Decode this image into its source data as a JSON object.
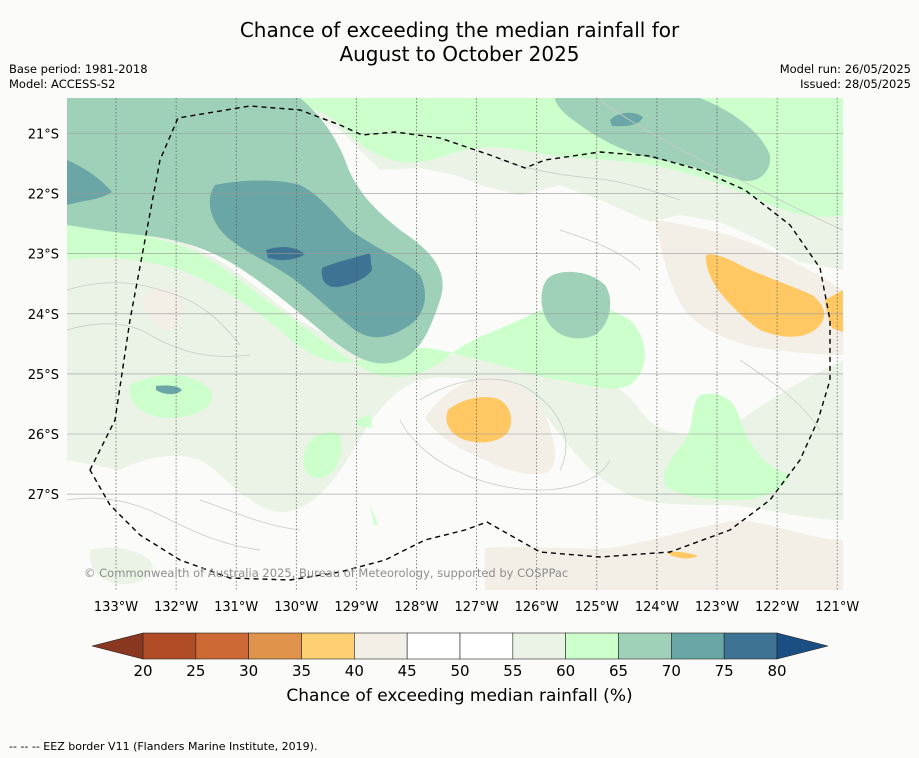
{
  "title_line1": "Chance of exceeding the median rainfall for",
  "title_line2": "August to October 2025",
  "base_period": "Base period: 1981-2018",
  "model": "Model: ACCESS-S2",
  "model_run": "Model run: 26/05/2025",
  "issued": "Issued: 28/05/2025",
  "lat_labels": [
    "21°S",
    "22°S",
    "23°S",
    "24°S",
    "25°S",
    "26°S",
    "27°S"
  ],
  "lon_labels": [
    "133°W",
    "132°W",
    "131°W",
    "130°W",
    "129°W",
    "128°W",
    "127°W",
    "126°W",
    "125°W",
    "124°W",
    "123°W",
    "122°W",
    "121°W"
  ],
  "copyright": "© Commonwealth of Australia 2025, Bureau of Meteorology, supported by COSPPac",
  "colorbar": {
    "ticks": [
      "20",
      "25",
      "30",
      "35",
      "40",
      "45",
      "50",
      "55",
      "60",
      "65",
      "70",
      "75",
      "80"
    ],
    "colors": [
      "#b04d26",
      "#cc6934",
      "#e0934a",
      "#ffd073",
      "#f3eee6",
      "#ffffff",
      "#ffffff",
      "#eaf3e6",
      "#ccffcc",
      "#9fd0b8",
      "#6aa6a6",
      "#3e7394"
    ],
    "under_color": "#8a3722",
    "over_color": "#1b4f84",
    "label": "Chance of exceeding median rainfall (%)"
  },
  "footnote": "-- -- -- EEZ border V11 (Flanders Marine Institute, 2019)."
}
